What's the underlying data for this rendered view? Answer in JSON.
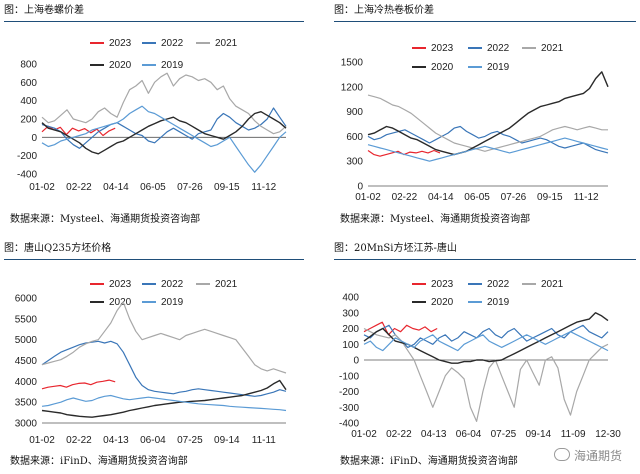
{
  "colors": {
    "s2023": "#e8262e",
    "s2022": "#3a76b8",
    "s2021": "#a8a8a8",
    "s2020": "#2a2a2a",
    "s2019": "#5b9bd5",
    "title_rule": "#1f4e79"
  },
  "watermark": {
    "text": "海通期货",
    "icon": "wechat-icon"
  },
  "panels": [
    {
      "title": "图：上海卷螺价差",
      "source": "数据来源：Mysteel、海通期货投资咨询部"
    },
    {
      "title": "图：上海冷热卷板价差",
      "source": "数据来源：Mysteel、海通期货投资咨询部"
    },
    {
      "title": "图：唐山Q235方坯价格",
      "source": "数据来源：iFinD、海通期货投资咨询部"
    },
    {
      "title": "图：20MnSi方坯江苏-唐山",
      "source": "数据来源：iFinD、海通期货投资咨询部"
    }
  ],
  "chart_data": [
    {
      "type": "line",
      "title": "",
      "xlabel": "",
      "ylabel": "",
      "grid": false,
      "legend": "top",
      "ylim": [
        -400,
        800
      ],
      "yticks": [
        "800",
        "600",
        "400",
        "200",
        "0",
        "-200",
        "-400"
      ],
      "xticks": [
        "01-02",
        "02-22",
        "04-14",
        "06-05",
        "07-26",
        "09-15",
        "11-12"
      ],
      "series": [
        {
          "name": "2023",
          "values": [
            60,
            120,
            80,
            110,
            30,
            100,
            70,
            95,
            50,
            90,
            20,
            70,
            100
          ]
        },
        {
          "name": "2022",
          "values": [
            140,
            120,
            100,
            60,
            -20,
            -80,
            -120,
            -60,
            0,
            60,
            100,
            140,
            160,
            120,
            80,
            40,
            20,
            -40,
            -60,
            0,
            60,
            100,
            60,
            20,
            -20,
            40,
            60,
            80,
            200,
            260,
            220,
            160,
            120,
            80,
            100,
            140,
            200,
            320,
            220,
            120
          ]
        },
        {
          "name": "2021",
          "values": [
            220,
            160,
            180,
            240,
            300,
            200,
            180,
            160,
            200,
            280,
            320,
            260,
            220,
            380,
            520,
            560,
            620,
            480,
            600,
            660,
            700,
            560,
            640,
            680,
            660,
            620,
            640,
            600,
            520,
            560,
            420,
            340,
            300,
            260,
            180,
            120,
            80,
            40,
            60,
            120
          ]
        },
        {
          "name": "2020",
          "values": [
            160,
            100,
            80,
            60,
            20,
            -20,
            -60,
            -120,
            -160,
            -180,
            -140,
            -100,
            -60,
            -40,
            0,
            40,
            80,
            120,
            150,
            180,
            200,
            220,
            180,
            160,
            120,
            80,
            40,
            20,
            0,
            -20,
            20,
            60,
            120,
            200,
            260,
            280,
            240,
            200,
            160,
            100
          ]
        },
        {
          "name": "2019",
          "values": [
            -60,
            -100,
            -80,
            -40,
            -20,
            0,
            20,
            40,
            80,
            100,
            120,
            140,
            160,
            200,
            260,
            300,
            340,
            280,
            260,
            220,
            180,
            140,
            100,
            60,
            20,
            -20,
            -60,
            -100,
            -80,
            -40,
            0,
            -100,
            -200,
            -300,
            -380,
            -300,
            -200,
            -100,
            0,
            60
          ]
        }
      ]
    },
    {
      "type": "line",
      "title": "",
      "xlabel": "",
      "ylabel": "",
      "grid": false,
      "legend": "top",
      "ylim": [
        0,
        1500
      ],
      "yticks": [
        "1500",
        "1200",
        "900",
        "600",
        "300",
        "0"
      ],
      "xticks": [
        "01-02",
        "02-22",
        "04-14",
        "06-05",
        "07-26",
        "09-15",
        "11-12"
      ],
      "series": [
        {
          "name": "2023",
          "values": [
            430,
            380,
            360,
            380,
            400,
            420,
            380,
            410,
            400,
            420,
            400,
            430,
            400
          ]
        },
        {
          "name": "2022",
          "values": [
            600,
            560,
            580,
            620,
            640,
            660,
            680,
            640,
            600,
            560,
            520,
            560,
            600,
            640,
            700,
            720,
            660,
            620,
            580,
            600,
            640,
            660,
            620,
            600,
            560,
            520,
            540,
            560,
            580,
            560,
            520,
            480,
            460,
            480,
            500,
            520,
            480,
            440,
            420,
            400
          ]
        },
        {
          "name": "2021",
          "values": [
            1100,
            1080,
            1060,
            1020,
            980,
            960,
            920,
            880,
            820,
            760,
            700,
            640,
            600,
            560,
            520,
            500,
            480,
            460,
            440,
            420,
            440,
            460,
            480,
            500,
            520,
            540,
            560,
            580,
            600,
            640,
            680,
            700,
            720,
            700,
            680,
            700,
            720,
            700,
            680,
            680
          ]
        },
        {
          "name": "2020",
          "values": [
            620,
            640,
            680,
            720,
            700,
            660,
            620,
            580,
            560,
            520,
            480,
            440,
            420,
            400,
            380,
            400,
            420,
            460,
            500,
            540,
            580,
            620,
            660,
            700,
            760,
            820,
            880,
            920,
            960,
            980,
            1000,
            1020,
            1060,
            1080,
            1100,
            1120,
            1180,
            1300,
            1380,
            1200
          ]
        },
        {
          "name": "2019",
          "values": [
            500,
            480,
            460,
            440,
            420,
            400,
            380,
            360,
            340,
            320,
            300,
            320,
            340,
            360,
            380,
            400,
            420,
            440,
            460,
            480,
            460,
            440,
            420,
            400,
            420,
            440,
            460,
            480,
            500,
            520,
            540,
            560,
            580,
            560,
            540,
            520,
            500,
            480,
            460,
            440
          ]
        }
      ]
    },
    {
      "type": "line",
      "title": "",
      "xlabel": "",
      "ylabel": "",
      "grid": false,
      "legend": "top",
      "ylim": [
        3000,
        6000
      ],
      "yticks": [
        "6000",
        "5500",
        "5000",
        "4500",
        "4000",
        "3500",
        "3000"
      ],
      "xticks": [
        "01-02",
        "02-22",
        "04-13",
        "06-04",
        "07-25",
        "09-14",
        "11-11"
      ],
      "series": [
        {
          "name": "2023",
          "values": [
            3820,
            3860,
            3880,
            3900,
            3860,
            3920,
            3950,
            3960,
            3920,
            3980,
            4000,
            4030,
            3990
          ]
        },
        {
          "name": "2022",
          "values": [
            4400,
            4500,
            4600,
            4700,
            4760,
            4820,
            4880,
            4920,
            4940,
            4960,
            4920,
            4960,
            4900,
            4700,
            4400,
            4100,
            3900,
            3800,
            3760,
            3740,
            3720,
            3700,
            3740,
            3760,
            3800,
            3820,
            3800,
            3780,
            3760,
            3740,
            3720,
            3700,
            3680,
            3660,
            3640,
            3660,
            3700,
            3740,
            3800,
            3760
          ]
        },
        {
          "name": "2021",
          "values": [
            4400,
            4440,
            4480,
            4520,
            4600,
            4700,
            4820,
            4900,
            4960,
            5000,
            5200,
            5400,
            5700,
            5900,
            5500,
            5200,
            5000,
            5050,
            5100,
            5150,
            5100,
            5050,
            5000,
            5100,
            5150,
            5200,
            5250,
            5200,
            5150,
            5100,
            5050,
            5000,
            4800,
            4600,
            4400,
            4300,
            4250,
            4300,
            4250,
            4200
          ]
        },
        {
          "name": "2020",
          "values": [
            3300,
            3280,
            3260,
            3240,
            3200,
            3180,
            3160,
            3150,
            3140,
            3160,
            3180,
            3200,
            3230,
            3260,
            3300,
            3330,
            3360,
            3390,
            3420,
            3440,
            3460,
            3480,
            3500,
            3510,
            3520,
            3530,
            3540,
            3560,
            3580,
            3600,
            3620,
            3640,
            3660,
            3700,
            3740,
            3780,
            3840,
            3940,
            4020,
            3800
          ]
        },
        {
          "name": "2019",
          "values": [
            3400,
            3420,
            3460,
            3500,
            3560,
            3600,
            3560,
            3520,
            3540,
            3600,
            3640,
            3660,
            3620,
            3580,
            3560,
            3580,
            3600,
            3620,
            3600,
            3580,
            3560,
            3540,
            3520,
            3500,
            3480,
            3460,
            3450,
            3440,
            3430,
            3420,
            3400,
            3390,
            3380,
            3370,
            3360,
            3350,
            3340,
            3330,
            3320,
            3300
          ]
        }
      ]
    },
    {
      "type": "line",
      "title": "",
      "xlabel": "",
      "ylabel": "",
      "grid": false,
      "legend": "top",
      "ylim": [
        -400,
        400
      ],
      "yticks": [
        "400",
        "300",
        "200",
        "100",
        "0",
        "-100",
        "-200",
        "-300",
        "-400"
      ],
      "xticks": [
        "01-02",
        "02-22",
        "04-13",
        "06-04",
        "07-25",
        "09-14",
        "11-09",
        "12-30"
      ],
      "series": [
        {
          "name": "2023",
          "values": [
            180,
            200,
            220,
            240,
            160,
            200,
            180,
            220,
            200,
            190,
            210,
            180,
            200
          ]
        },
        {
          "name": "2022",
          "values": [
            160,
            140,
            180,
            200,
            220,
            160,
            120,
            80,
            100,
            140,
            120,
            100,
            140,
            160,
            120,
            140,
            180,
            160,
            140,
            180,
            200,
            160,
            140,
            180,
            200,
            160,
            120,
            140,
            160,
            180,
            200,
            160,
            140,
            180,
            200,
            220,
            180,
            160,
            140,
            180
          ]
        },
        {
          "name": "2021",
          "values": [
            200,
            180,
            160,
            150,
            140,
            160,
            120,
            60,
            0,
            -100,
            -200,
            -300,
            -200,
            -100,
            -50,
            -80,
            -120,
            -300,
            -390,
            -200,
            -50,
            0,
            -100,
            -200,
            -300,
            -60,
            0,
            -80,
            -160,
            0,
            20,
            -50,
            -250,
            -350,
            -200,
            -100,
            0,
            40,
            80,
            100
          ]
        },
        {
          "name": "2020",
          "values": [
            120,
            150,
            180,
            200,
            160,
            120,
            110,
            100,
            80,
            60,
            40,
            20,
            0,
            -10,
            -20,
            -20,
            -10,
            -10,
            0,
            0,
            -10,
            -5,
            0,
            20,
            40,
            60,
            80,
            100,
            120,
            140,
            160,
            180,
            200,
            220,
            240,
            250,
            260,
            300,
            280,
            250
          ]
        },
        {
          "name": "2019",
          "values": [
            100,
            120,
            80,
            60,
            100,
            140,
            120,
            100,
            80,
            120,
            140,
            160,
            120,
            100,
            80,
            60,
            100,
            120,
            140,
            160,
            120,
            100,
            80,
            100,
            120,
            140,
            160,
            140,
            120,
            100,
            120,
            140,
            160,
            180,
            160,
            140,
            120,
            100,
            80,
            60
          ]
        }
      ]
    }
  ]
}
